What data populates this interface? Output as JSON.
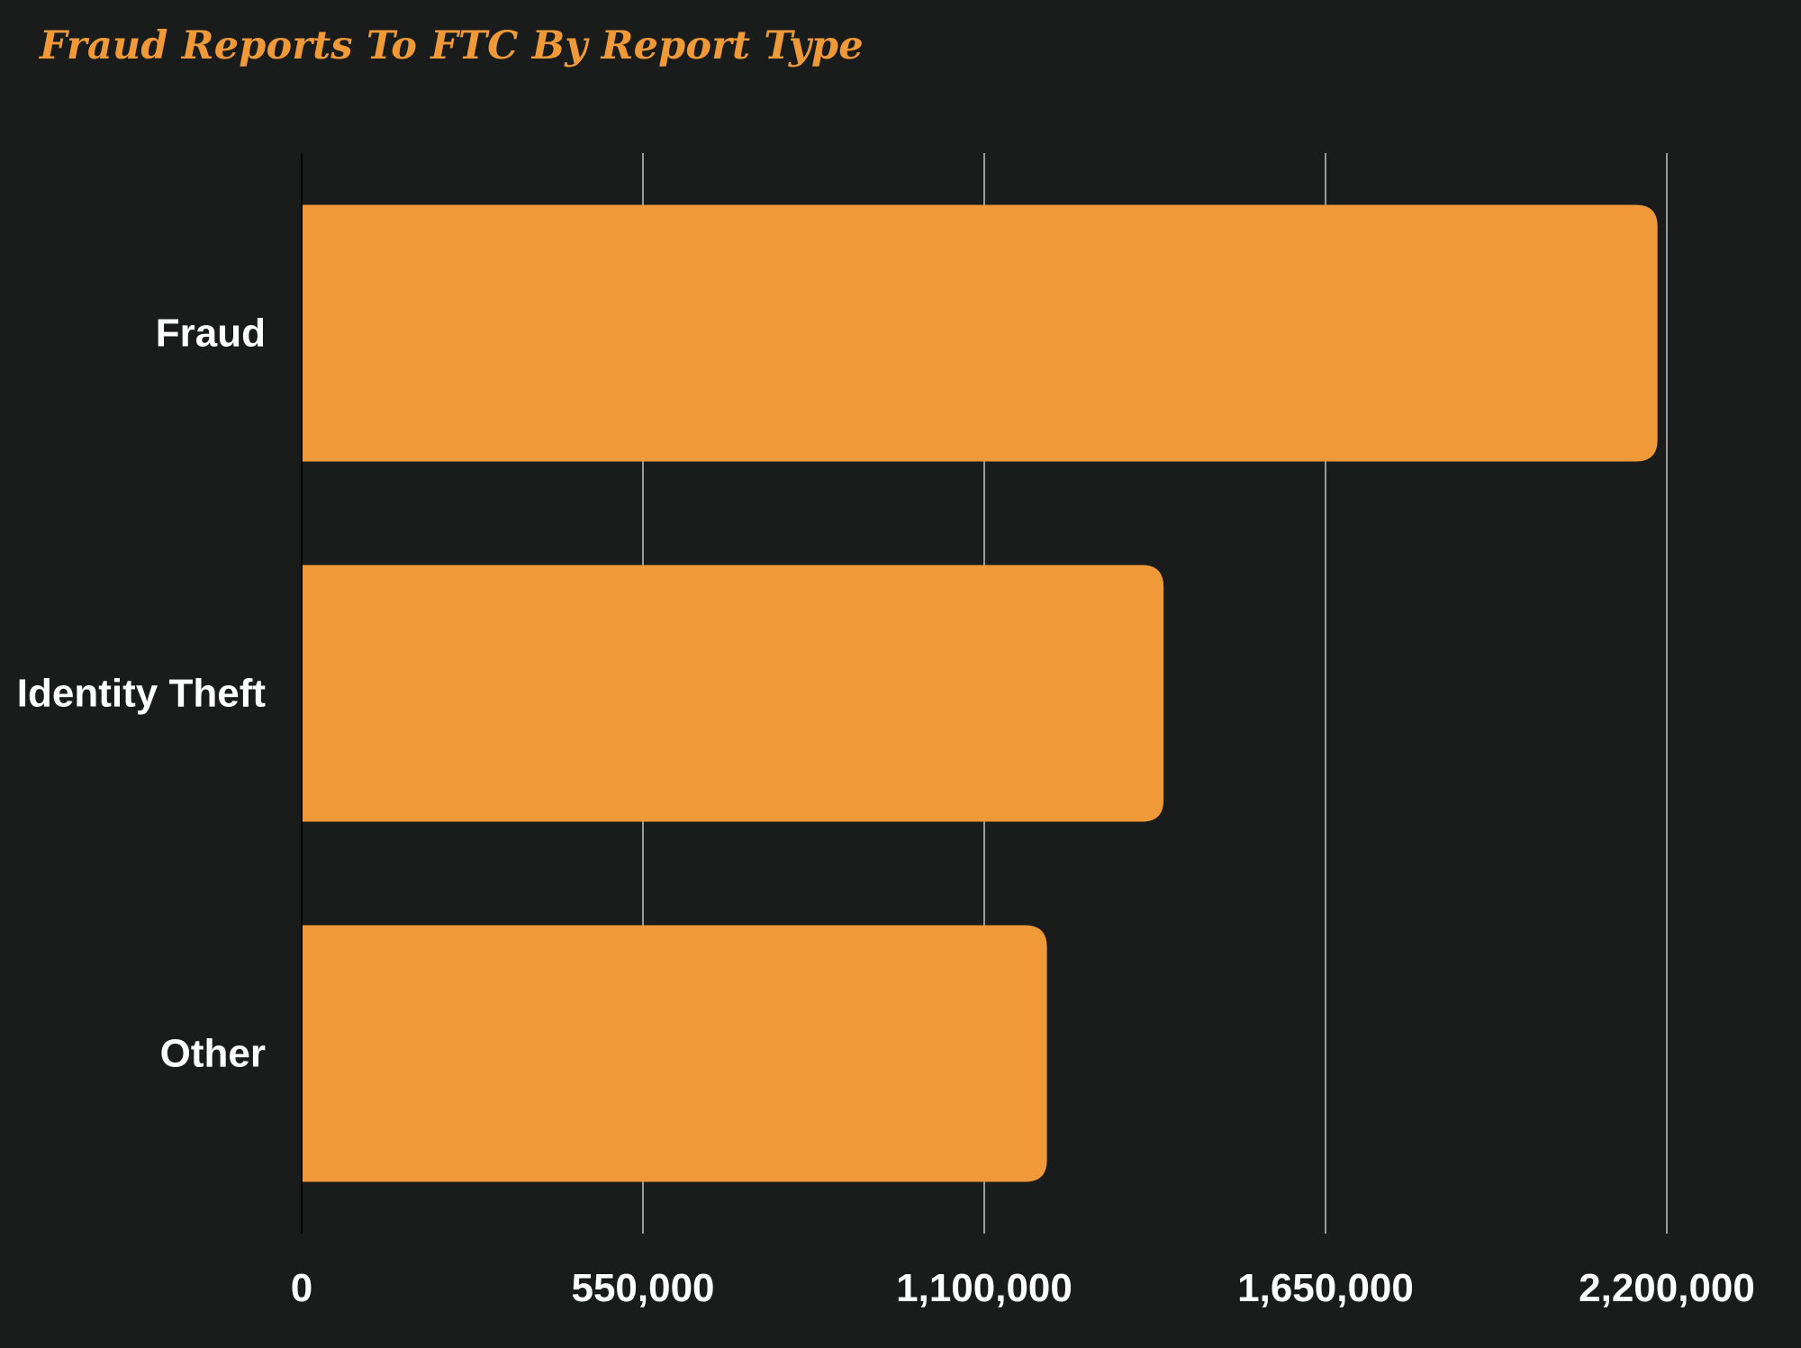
{
  "colors": {
    "background": "#1a1c1b",
    "bar": "#ef9938",
    "title": "#ef9938",
    "gridline": "#9a9a9a",
    "axis": "#000000",
    "text": "#ffffff"
  },
  "chart_data": {
    "type": "bar",
    "orientation": "horizontal",
    "title": "Fraud Reports To FTC By Report Type",
    "categories": [
      "Fraud",
      "Identity Theft",
      "Other"
    ],
    "values": [
      2185000,
      1389000,
      1201000
    ],
    "xlabel": "",
    "ylabel": "",
    "xlim": [
      0,
      2200000
    ],
    "xticks": [
      0,
      550000,
      1100000,
      1650000,
      2200000
    ],
    "xtick_labels": [
      "0",
      "550,000",
      "1,100,000",
      "1,650,000",
      "2,200,000"
    ],
    "grid": true,
    "legend": "none"
  }
}
